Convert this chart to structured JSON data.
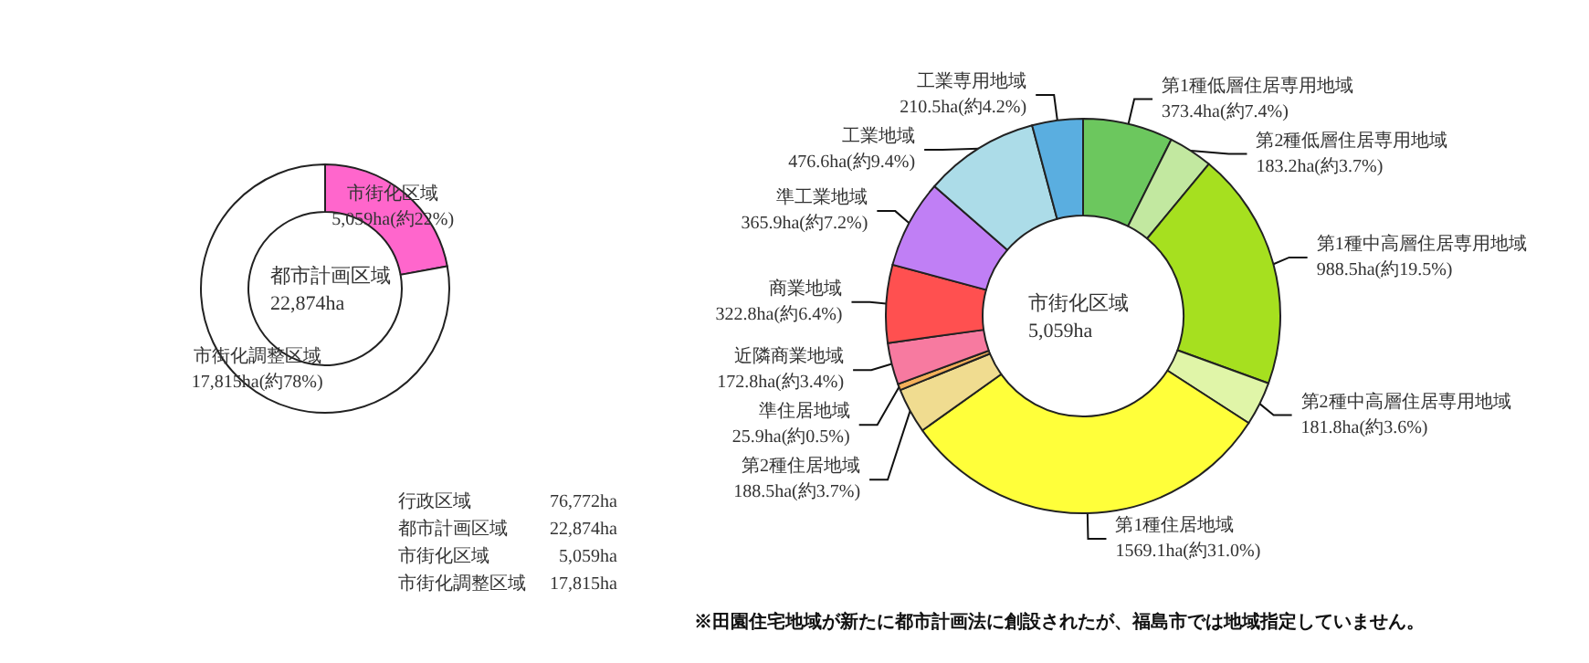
{
  "chart_data": [
    {
      "type": "donut",
      "categories": [
        "市街化区域",
        "市街化調整区域"
      ],
      "values": [
        5059,
        17815
      ],
      "colors": [
        "#ff66cc",
        "#ffffff"
      ],
      "value_labels": [
        "5,059ha(約22%)",
        "17,815ha(約78%)"
      ],
      "annotations": [
        "都市計画区域\n22,874ha",
        "行政区域 76,772ha",
        "都市計画区域 22,874ha",
        "市街化区域 5,059ha",
        "市街化調整区域 17,815ha"
      ]
    },
    {
      "type": "donut",
      "categories": [
        "第1種低層住居専用地域",
        "第2種低層住居専用地域",
        "第1種中高層住居専用地域",
        "第2種中高層住居専用地域",
        "第1種住居地域",
        "第2種住居地域",
        "準住居地域",
        "近隣商業地域",
        "商業地域",
        "準工業地域",
        "工業地域",
        "工業専用地域"
      ],
      "values": [
        373.4,
        183.2,
        988.5,
        181.8,
        1569.1,
        188.5,
        25.9,
        172.8,
        322.8,
        365.9,
        476.6,
        210.5
      ],
      "colors": [
        "#6cc75e",
        "#c2e8a0",
        "#a6e01f",
        "#e0f5a8",
        "#ffff3a",
        "#f0dc90",
        "#f5b05a",
        "#f77aa0",
        "#ff5050",
        "#c07ff5",
        "#acdce8",
        "#5aaee0"
      ],
      "value_labels": [
        "373.4ha(約7.4%)",
        "183.2ha(約3.7%)",
        "988.5ha(約19.5%)",
        "181.8ha(約3.6%)",
        "1569.1ha(約31.0%)",
        "188.5ha(約3.7%)",
        "25.9ha(約0.5%)",
        "172.8ha(約3.4%)",
        "322.8ha(約6.4%)",
        "365.9ha(約7.2%)",
        "476.6ha(約9.4%)",
        "210.5ha(約4.2%)"
      ],
      "annotations": [
        "市街化区域\n5,059ha",
        "※田園住宅地域が新たに都市計画法に創設されたが、福島市では地域指定していません。"
      ]
    }
  ]
}
